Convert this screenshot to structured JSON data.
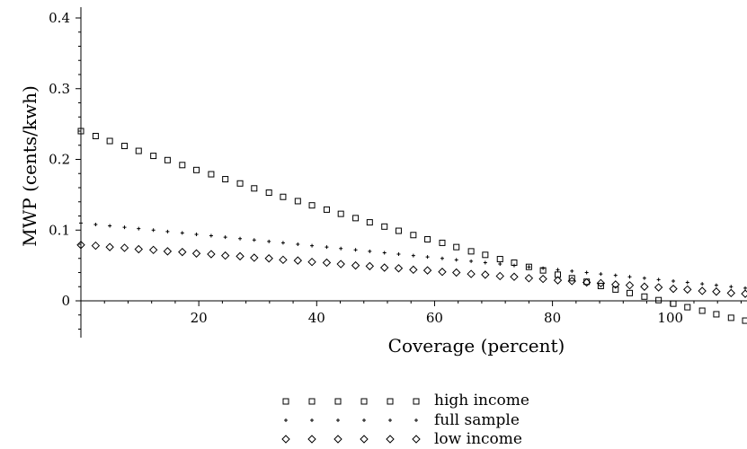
{
  "chart_data": {
    "type": "scatter",
    "title": "",
    "xlabel": "Coverage (percent)",
    "ylabel": "MWP (cents/kwh)",
    "xlim": [
      0,
      113
    ],
    "ylim": [
      -0.04,
      0.42
    ],
    "x_ticks": [
      20,
      40,
      60,
      80,
      100
    ],
    "x_tick_labels": [
      "20",
      "40",
      "60",
      "80",
      "100"
    ],
    "y_ticks": [
      0,
      0.1,
      0.2,
      0.3,
      0.4
    ],
    "y_tick_labels": [
      "0",
      "0.1",
      "0.2",
      "0.3",
      "0.4"
    ],
    "grid": false,
    "legend_position": "bottom-center",
    "series": [
      {
        "name": "high income",
        "marker": "square",
        "x": [
          0,
          2.5,
          4.9,
          7.4,
          9.8,
          12.3,
          14.7,
          17.2,
          19.6,
          22.1,
          24.5,
          27.0,
          29.4,
          31.9,
          34.3,
          36.8,
          39.2,
          41.7,
          44.1,
          46.6,
          49.0,
          51.5,
          53.9,
          56.4,
          58.8,
          61.3,
          63.7,
          66.2,
          68.6,
          71.1,
          73.5,
          76.0,
          78.4,
          80.9,
          83.3,
          85.8,
          88.2,
          90.7,
          93.1,
          95.6,
          98.0,
          100.5,
          102.9,
          105.4,
          107.8,
          110.3,
          112.7
        ],
        "values": [
          0.24,
          0.233,
          0.226,
          0.219,
          0.212,
          0.205,
          0.199,
          0.192,
          0.185,
          0.179,
          0.172,
          0.166,
          0.159,
          0.153,
          0.147,
          0.141,
          0.135,
          0.129,
          0.123,
          0.117,
          0.111,
          0.105,
          0.099,
          0.093,
          0.087,
          0.082,
          0.076,
          0.07,
          0.065,
          0.059,
          0.054,
          0.048,
          0.043,
          0.037,
          0.032,
          0.027,
          0.021,
          0.016,
          0.011,
          0.006,
          0.001,
          -0.004,
          -0.009,
          -0.014,
          -0.019,
          -0.024,
          -0.028
        ]
      },
      {
        "name": "full sample",
        "marker": "plus",
        "x": [
          0,
          2.5,
          4.9,
          7.4,
          9.8,
          12.3,
          14.7,
          17.2,
          19.6,
          22.1,
          24.5,
          27.0,
          29.4,
          31.9,
          34.3,
          36.8,
          39.2,
          41.7,
          44.1,
          46.6,
          49.0,
          51.5,
          53.9,
          56.4,
          58.8,
          61.3,
          63.7,
          66.2,
          68.6,
          71.1,
          73.5,
          76.0,
          78.4,
          80.9,
          83.3,
          85.8,
          88.2,
          90.7,
          93.1,
          95.6,
          98.0,
          100.5,
          102.9,
          105.4,
          107.8,
          110.3,
          112.7
        ],
        "values": [
          0.11,
          0.108,
          0.106,
          0.104,
          0.102,
          0.1,
          0.098,
          0.096,
          0.094,
          0.092,
          0.09,
          0.088,
          0.086,
          0.084,
          0.082,
          0.08,
          0.078,
          0.076,
          0.074,
          0.072,
          0.07,
          0.068,
          0.066,
          0.064,
          0.062,
          0.06,
          0.058,
          0.056,
          0.054,
          0.052,
          0.05,
          0.048,
          0.046,
          0.044,
          0.042,
          0.04,
          0.038,
          0.036,
          0.034,
          0.032,
          0.03,
          0.028,
          0.026,
          0.024,
          0.022,
          0.02,
          0.018
        ]
      },
      {
        "name": "low income",
        "marker": "diamond",
        "x": [
          0,
          2.5,
          4.9,
          7.4,
          9.8,
          12.3,
          14.7,
          17.2,
          19.6,
          22.1,
          24.5,
          27.0,
          29.4,
          31.9,
          34.3,
          36.8,
          39.2,
          41.7,
          44.1,
          46.6,
          49.0,
          51.5,
          53.9,
          56.4,
          58.8,
          61.3,
          63.7,
          66.2,
          68.6,
          71.1,
          73.5,
          76.0,
          78.4,
          80.9,
          83.3,
          85.8,
          88.2,
          90.7,
          93.1,
          95.6,
          98.0,
          100.5,
          102.9,
          105.4,
          107.8,
          110.3,
          112.7
        ],
        "values": [
          0.079,
          0.078,
          0.076,
          0.075,
          0.073,
          0.072,
          0.07,
          0.069,
          0.067,
          0.066,
          0.064,
          0.063,
          0.061,
          0.06,
          0.058,
          0.057,
          0.055,
          0.054,
          0.052,
          0.05,
          0.049,
          0.047,
          0.046,
          0.044,
          0.043,
          0.041,
          0.04,
          0.038,
          0.037,
          0.035,
          0.034,
          0.032,
          0.031,
          0.029,
          0.028,
          0.026,
          0.025,
          0.023,
          0.022,
          0.02,
          0.019,
          0.017,
          0.016,
          0.014,
          0.013,
          0.011,
          0.01
        ]
      }
    ]
  }
}
